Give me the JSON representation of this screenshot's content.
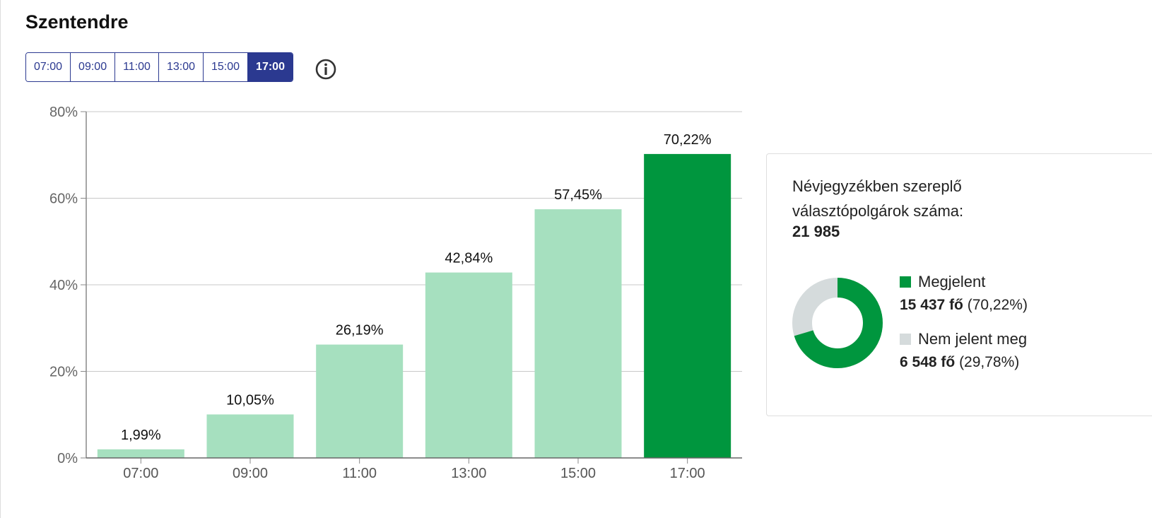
{
  "header": {
    "title": "Szentendre"
  },
  "tabs": [
    {
      "label": "07:00",
      "active": false
    },
    {
      "label": "09:00",
      "active": false
    },
    {
      "label": "11:00",
      "active": false
    },
    {
      "label": "13:00",
      "active": false
    },
    {
      "label": "15:00",
      "active": false
    },
    {
      "label": "17:00",
      "active": true
    }
  ],
  "info": {
    "icon": "info-icon"
  },
  "colors": {
    "accent": "#2b3990",
    "bar_light": "#a6e0bf",
    "bar_active": "#00963e",
    "absent": "#d5dbdc"
  },
  "chart_data": {
    "type": "bar",
    "categories": [
      "07:00",
      "09:00",
      "11:00",
      "13:00",
      "15:00",
      "17:00"
    ],
    "values": [
      1.99,
      10.05,
      26.19,
      42.84,
      57.45,
      70.22
    ],
    "data_labels": [
      "1,99%",
      "10,05%",
      "26,19%",
      "42,84%",
      "57,45%",
      "70,22%"
    ],
    "highlight_index": 5,
    "ylim": [
      0,
      80
    ],
    "yticks": [
      0,
      20,
      40,
      60,
      80
    ],
    "ytick_labels": [
      "0%",
      "20%",
      "40%",
      "60%",
      "80%"
    ],
    "grid": true
  },
  "card": {
    "label": "Névjegyzékben szereplő választópolgárok száma:",
    "total": "21 985",
    "donut": {
      "present_pct": 70.22,
      "absent_pct": 29.78
    },
    "legend": {
      "present": {
        "name": "Megjelent",
        "count": "15 437 fő",
        "pct": "(70,22%)"
      },
      "absent": {
        "name": "Nem jelent meg",
        "count": "6 548 fő",
        "pct": "(29,78%)"
      }
    }
  }
}
